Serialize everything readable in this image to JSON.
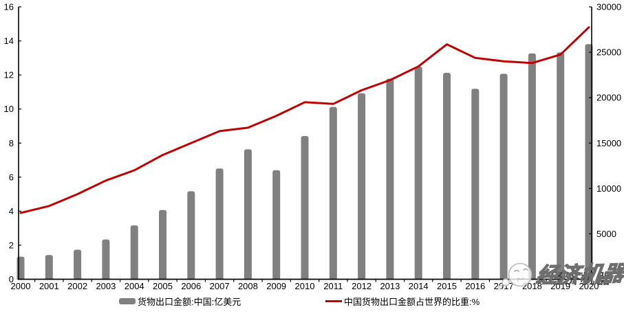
{
  "watermark": {
    "text": "经济机器"
  },
  "chart_data": {
    "type": "bar",
    "subtype": "bar+line combo, dual axis",
    "title": "",
    "xlabel": "",
    "ylabel_left": "中国货物出口金额占世界的比重:%",
    "ylabel_right": "货物出口金额:中国:亿美元",
    "grid": false,
    "legend_position": "bottom",
    "categories": [
      "2000",
      "2001",
      "2002",
      "2003",
      "2004",
      "2005",
      "2006",
      "2007",
      "2008",
      "2009",
      "2010",
      "2011",
      "2012",
      "2013",
      "2014",
      "2015",
      "2016",
      "2017",
      "2018",
      "2019",
      "2020"
    ],
    "series": [
      {
        "name": "货物出口金额:中国:亿美元",
        "type": "bar",
        "axis": "right",
        "color": "#808080",
        "values": [
          2492,
          2661,
          3256,
          4382,
          5933,
          7620,
          9690,
          12205,
          14307,
          12016,
          15778,
          18984,
          20487,
          22090,
          23422,
          22735,
          20976,
          22633,
          24867,
          24990,
          25900
        ]
      },
      {
        "name": "中国货物出口金额占世界的比重:%",
        "type": "line",
        "axis": "left",
        "color": "#C00000",
        "values": [
          3.9,
          4.3,
          5.0,
          5.8,
          6.4,
          7.3,
          8.0,
          8.7,
          8.9,
          9.6,
          10.4,
          10.3,
          11.1,
          11.7,
          12.5,
          13.8,
          13.0,
          12.8,
          12.7,
          13.2,
          14.8
        ]
      }
    ],
    "left_axis": {
      "min": 0,
      "max": 16,
      "step": 2,
      "ticks": [
        "0",
        "2",
        "4",
        "6",
        "8",
        "10",
        "12",
        "14",
        "16"
      ]
    },
    "right_axis": {
      "min": 0,
      "max": 30000,
      "step": 5000,
      "ticks": [
        "0",
        "5000",
        "10000",
        "15000",
        "20000",
        "25000",
        "30000"
      ]
    }
  }
}
